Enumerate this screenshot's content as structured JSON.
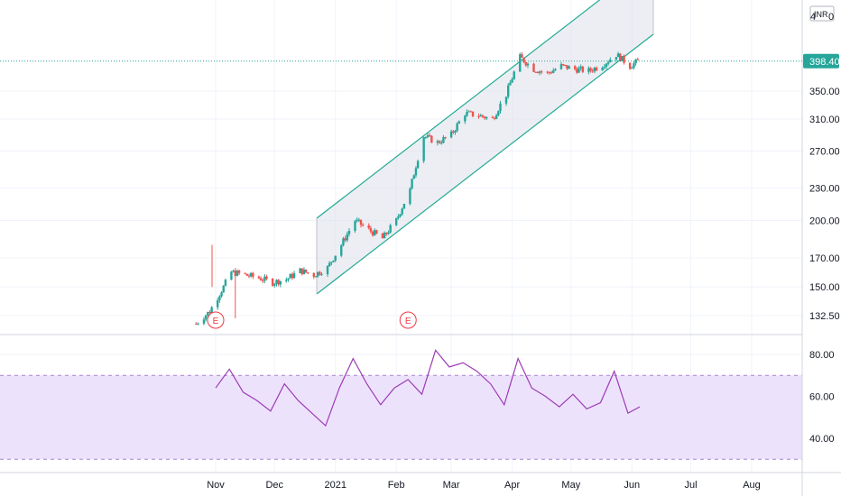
{
  "chart_data": [
    {
      "type": "candlestick",
      "currency_label": "INR",
      "y_ticks": [
        "350.00",
        "310.00",
        "270.00",
        "230.00",
        "200.00",
        "170.00",
        "150.00",
        "132.50"
      ],
      "top_tick_partial": "4",
      "top_tick_tail": "0",
      "last_price": "398.40",
      "x_ticks": [
        "Nov",
        "Dec",
        "2021",
        "Feb",
        "Mar",
        "Apr",
        "May",
        "Jun",
        "Jul",
        "Aug"
      ],
      "earnings_markers": [
        "E",
        "E"
      ],
      "close_points": [
        [
          "2020-10-22",
          128
        ],
        [
          "2020-10-29",
          135
        ],
        [
          "2020-11-05",
          150
        ],
        [
          "2020-11-09",
          160
        ],
        [
          "2020-11-16",
          158
        ],
        [
          "2020-11-23",
          156
        ],
        [
          "2020-11-30",
          153
        ],
        [
          "2020-12-07",
          155
        ],
        [
          "2020-12-14",
          161
        ],
        [
          "2020-12-21",
          158
        ],
        [
          "2020-12-28",
          163
        ],
        [
          "2021-01-04",
          180
        ],
        [
          "2021-01-11",
          200
        ],
        [
          "2021-01-18",
          192
        ],
        [
          "2021-01-25",
          185
        ],
        [
          "2021-02-01",
          200
        ],
        [
          "2021-02-08",
          228
        ],
        [
          "2021-02-15",
          288
        ],
        [
          "2021-02-22",
          280
        ],
        [
          "2021-03-01",
          290
        ],
        [
          "2021-03-08",
          318
        ],
        [
          "2021-03-15",
          315
        ],
        [
          "2021-03-22",
          310
        ],
        [
          "2021-03-29",
          345
        ],
        [
          "2021-04-05",
          405
        ],
        [
          "2021-04-12",
          385
        ],
        [
          "2021-04-19",
          378
        ],
        [
          "2021-04-26",
          390
        ],
        [
          "2021-05-03",
          385
        ],
        [
          "2021-05-10",
          382
        ],
        [
          "2021-05-17",
          392
        ],
        [
          "2021-05-24",
          410
        ],
        [
          "2021-05-31",
          390
        ],
        [
          "2021-06-04",
          398
        ]
      ],
      "channel": {
        "start": [
          "2020-12-25",
          200
        ],
        "end": [
          "2021-06-10",
          370
        ],
        "upper_offset": 110
      }
    },
    {
      "type": "line",
      "indicator": "RSI",
      "y_ticks": [
        "80.00",
        "60.00",
        "40.00"
      ],
      "band": [
        30,
        70
      ],
      "ylim": [
        25,
        85
      ],
      "x": [
        "2020-11-01",
        "2020-11-08",
        "2020-11-15",
        "2020-11-22",
        "2020-11-29",
        "2020-12-06",
        "2020-12-13",
        "2020-12-20",
        "2020-12-27",
        "2021-01-03",
        "2021-01-10",
        "2021-01-17",
        "2021-01-24",
        "2021-01-31",
        "2021-02-07",
        "2021-02-14",
        "2021-02-21",
        "2021-02-28",
        "2021-03-07",
        "2021-03-14",
        "2021-03-21",
        "2021-03-28",
        "2021-04-04",
        "2021-04-11",
        "2021-04-18",
        "2021-04-25",
        "2021-05-02",
        "2021-05-09",
        "2021-05-16",
        "2021-05-23",
        "2021-05-30",
        "2021-06-05"
      ],
      "values": [
        64,
        73,
        62,
        58,
        53,
        66,
        58,
        52,
        46,
        64,
        78,
        66,
        56,
        64,
        68,
        61,
        82,
        74,
        76,
        72,
        66,
        56,
        78,
        64,
        60,
        55,
        61,
        54,
        57,
        72,
        52,
        55
      ]
    }
  ]
}
